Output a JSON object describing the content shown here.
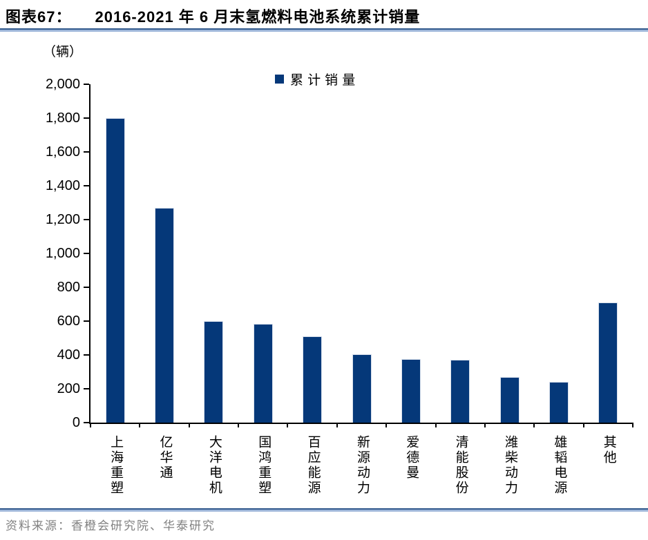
{
  "header": {
    "chart_no": "图表67：",
    "title": "2016-2021 年 6 月末氢燃料电池系统累计销量"
  },
  "unit_label": "（辆）",
  "legend": {
    "label": "累计销量",
    "marker_color": "#053879"
  },
  "chart_data": {
    "type": "bar",
    "title": "2016-2021 年 6 月末氢燃料电池系统累计销量",
    "series_name": "累计销量",
    "categories": [
      "上海重塑",
      "亿华通",
      "大洋电机",
      "国鸿重塑",
      "百应能源",
      "新源动力",
      "爱德曼",
      "清能股份",
      "潍柴动力",
      "雄韬电源",
      "其他"
    ],
    "values": [
      1800,
      1270,
      600,
      585,
      510,
      405,
      375,
      370,
      270,
      240,
      710
    ],
    "ylabel": "（辆）",
    "ylim": [
      0,
      2000
    ],
    "ytick_step": 200,
    "ytick_labels": [
      "0",
      "200",
      "400",
      "600",
      "800",
      "1,000",
      "1,200",
      "1,400",
      "1,600",
      "1,800",
      "2,000"
    ],
    "bar_color": "#053879",
    "grid": false,
    "legend_position": "top-center"
  },
  "footer": {
    "source": "资料来源：香橙会研究院、华泰研究"
  },
  "colors": {
    "bar": "#053879",
    "rule_dark": "#31598C",
    "rule_light": "#9FB7DA",
    "source_text": "#818181",
    "axis": "#000000"
  }
}
